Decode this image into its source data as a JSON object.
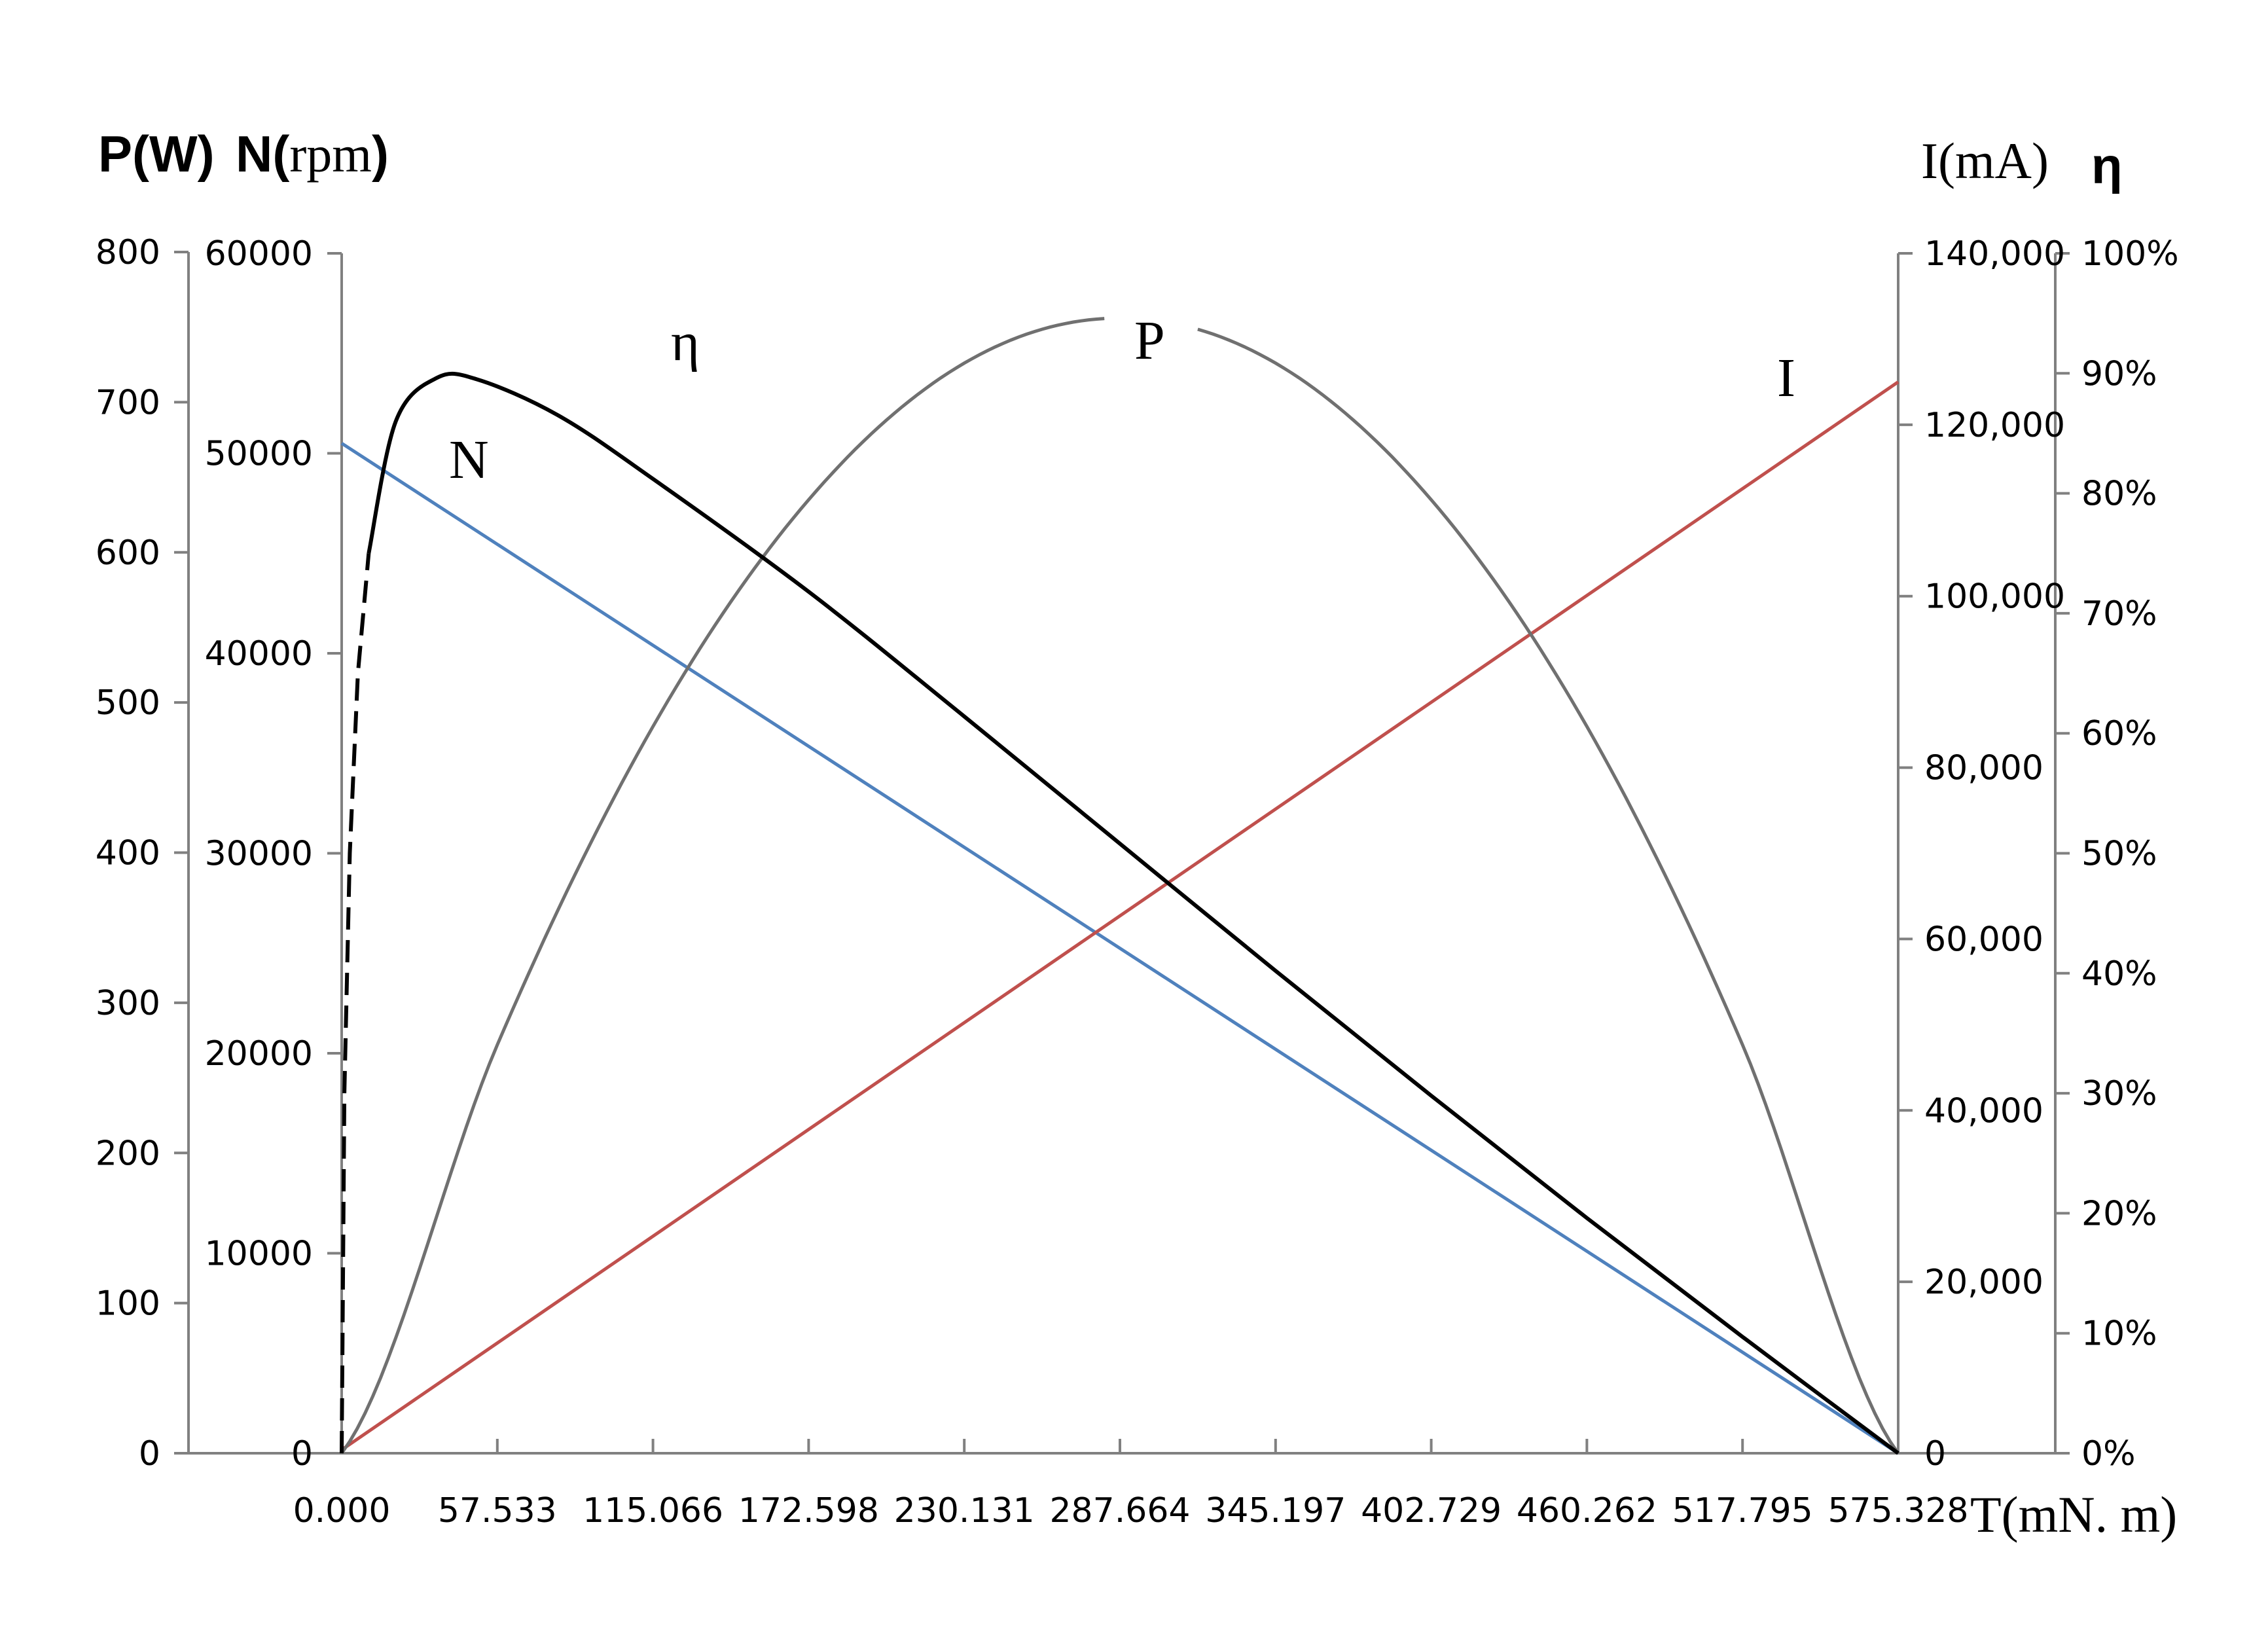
{
  "chart_data": {
    "type": "line",
    "axis_titles": {
      "left_outer_pw": "P(W)",
      "left_inner_n": "N(",
      "left_inner_n_unit": "rpm",
      "left_inner_n_close": ")",
      "right_inner_i": "I(mA)",
      "right_outer_eta": "η",
      "x": "T(mN. m)"
    },
    "x_axis": {
      "range": [
        0,
        575.328
      ],
      "tick_labels": [
        "0.000",
        "57.533",
        "115.066",
        "172.598",
        "230.131",
        "287.664",
        "345.197",
        "402.729",
        "460.262",
        "517.795",
        "575.328"
      ]
    },
    "y_axes": {
      "power": {
        "range": [
          0,
          800
        ],
        "tick_labels": [
          "0",
          "100",
          "200",
          "300",
          "400",
          "500",
          "600",
          "700",
          "800"
        ]
      },
      "speed": {
        "range": [
          0,
          60000
        ],
        "tick_labels": [
          "0",
          "10000",
          "20000",
          "30000",
          "40000",
          "50000",
          "60000"
        ]
      },
      "current": {
        "range": [
          0,
          140000
        ],
        "tick_labels": [
          "0",
          "20,000",
          "40,000",
          "60,000",
          "80,000",
          "100,000",
          "120,000",
          "140,000"
        ]
      },
      "efficiency": {
        "range": [
          0,
          100
        ],
        "tick_labels": [
          "0%",
          "10%",
          "20%",
          "30%",
          "40%",
          "50%",
          "60%",
          "70%",
          "80%",
          "90%",
          "100%"
        ]
      }
    },
    "series": [
      {
        "name": "N",
        "axis": "speed",
        "color": "#4f81bd",
        "x": [
          0,
          575.328
        ],
        "y": [
          50500,
          0
        ]
      },
      {
        "name": "I",
        "axis": "current",
        "color": "#c0504d",
        "x": [
          0,
          575.328
        ],
        "y": [
          400,
          125000
        ]
      },
      {
        "name": "P",
        "axis": "power",
        "color": "#707070",
        "x": [
          0,
          57.533,
          115.066,
          172.598,
          230.131,
          287.664,
          345.197,
          402.729,
          460.262,
          517.795,
          575.328
        ],
        "y": [
          0,
          272,
          484,
          635,
          726,
          756,
          726,
          635,
          484,
          272,
          0
        ]
      },
      {
        "name": "η",
        "axis": "efficiency",
        "color": "#000000",
        "x": [
          0,
          1,
          3,
          6,
          10,
          20,
          35,
          50,
          80,
          115.066,
          172.598,
          230.131,
          287.664,
          345.197,
          402.729,
          460.262,
          517.795,
          575.328
        ],
        "y": [
          0,
          30,
          50,
          65,
          75,
          86,
          89.6,
          89.5,
          86.5,
          81.2,
          71.8,
          61.4,
          50.8,
          40.2,
          29.8,
          19.6,
          9.7,
          0
        ]
      }
    ],
    "series_labels": [
      "N",
      "η",
      "P",
      "I"
    ],
    "legend": "none",
    "grid": false
  }
}
